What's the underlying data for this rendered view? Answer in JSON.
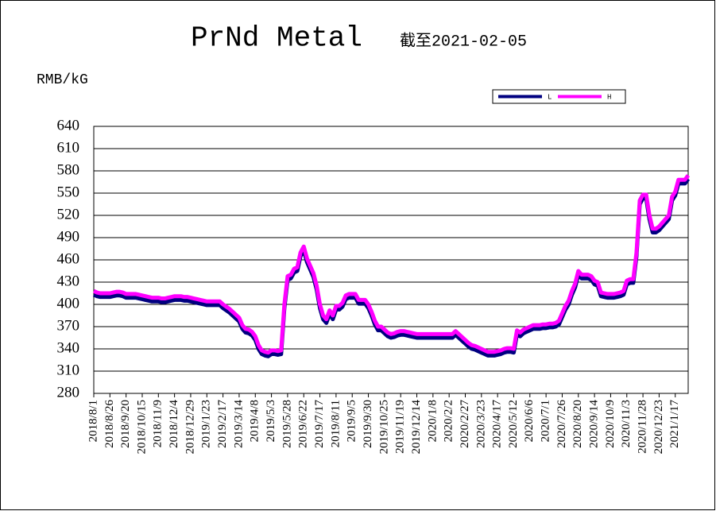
{
  "chart_data": {
    "type": "line",
    "title": "PrNd Metal",
    "subtitle": "截至2021-02-05",
    "y_label": "RMB/kG",
    "categories": [
      "2018/8/1",
      null,
      null,
      null,
      null,
      "2018/8/26",
      null,
      null,
      null,
      null,
      "2018/9/20",
      null,
      null,
      null,
      null,
      "2018/10/15",
      null,
      null,
      null,
      null,
      "2018/11/9",
      null,
      null,
      null,
      null,
      "2018/12/4",
      null,
      null,
      null,
      null,
      "2018/12/29",
      null,
      null,
      null,
      null,
      "2019/1/23",
      null,
      null,
      null,
      null,
      "2019/2/17",
      null,
      null,
      null,
      null,
      "2019/3/14",
      null,
      null,
      null,
      null,
      "2019/4/8",
      null,
      null,
      null,
      null,
      "2019/5/3",
      null,
      null,
      null,
      null,
      "2019/5/28",
      null,
      null,
      null,
      null,
      "2019/6/22",
      null,
      null,
      null,
      null,
      "2019/7/17",
      null,
      null,
      null,
      null,
      "2019/8/11",
      null,
      null,
      null,
      null,
      "2019/9/5",
      null,
      null,
      null,
      null,
      "2019/9/30",
      null,
      null,
      null,
      null,
      "2019/10/25",
      null,
      null,
      null,
      null,
      "2019/11/19",
      null,
      null,
      null,
      null,
      "2019/12/14",
      null,
      null,
      null,
      null,
      "2020/1/8",
      null,
      null,
      null,
      null,
      "2020/2/2",
      null,
      null,
      null,
      null,
      "2020/2/27",
      null,
      null,
      null,
      null,
      "2020/3/23",
      null,
      null,
      null,
      null,
      "2020/4/17",
      null,
      null,
      null,
      null,
      "2020/5/12",
      null,
      null,
      null,
      null,
      "2020/6/6",
      null,
      null,
      null,
      null,
      "2020/7/1",
      null,
      null,
      null,
      null,
      "2020/7/26",
      null,
      null,
      null,
      null,
      "2020/8/20",
      null,
      null,
      null,
      null,
      "2020/9/14",
      null,
      null,
      null,
      null,
      "2020/10/9",
      null,
      null,
      null,
      null,
      "2020/11/3",
      null,
      null,
      null,
      null,
      "2020/11/28",
      null,
      null,
      null,
      null,
      "2020/12/23",
      null,
      null,
      null,
      null,
      "2021/1/17",
      null,
      null,
      null,
      null
    ],
    "series": [
      {
        "name": "L",
        "color": "#000080",
        "values": [
          413,
          411,
          410,
          410,
          410,
          410,
          411,
          412,
          412,
          411,
          409,
          409,
          409,
          409,
          408,
          407,
          406,
          405,
          404,
          404,
          404,
          403,
          403,
          404,
          405,
          406,
          406,
          406,
          405,
          405,
          404,
          403,
          402,
          401,
          400,
          399,
          399,
          399,
          399,
          399,
          395,
          392,
          389,
          385,
          381,
          377,
          367,
          362,
          361,
          358,
          352,
          340,
          333,
          331,
          330,
          333,
          333,
          332,
          333,
          395,
          433,
          435,
          443,
          445,
          465,
          473,
          457,
          447,
          437,
          420,
          395,
          380,
          375,
          387,
          380,
          393,
          393,
          397,
          407,
          409,
          409,
          409,
          401,
          401,
          401,
          395,
          385,
          373,
          365,
          365,
          361,
          357,
          355,
          356,
          358,
          359,
          359,
          358,
          357,
          356,
          355,
          355,
          355,
          355,
          355,
          355,
          355,
          355,
          355,
          355,
          355,
          355,
          359,
          355,
          351,
          347,
          343,
          340,
          339,
          337,
          335,
          333,
          331,
          331,
          331,
          332,
          333,
          335,
          336,
          336,
          335,
          360,
          357,
          361,
          363,
          365,
          367,
          367,
          367,
          368,
          368,
          369,
          369,
          370,
          373,
          383,
          393,
          400,
          413,
          423,
          440,
          435,
          435,
          435,
          433,
          427,
          425,
          411,
          410,
          409,
          409,
          409,
          410,
          411,
          413,
          427,
          429,
          429,
          465,
          535,
          543,
          543,
          515,
          497,
          497,
          500,
          505,
          510,
          515,
          540,
          547,
          563,
          563,
          563,
          569
        ]
      },
      {
        "name": "H",
        "color": "#ff00ff",
        "values": [
          418,
          416,
          415,
          415,
          415,
          415,
          416,
          417,
          417,
          416,
          414,
          414,
          414,
          414,
          413,
          412,
          411,
          410,
          409,
          409,
          409,
          408,
          408,
          409,
          410,
          411,
          411,
          411,
          410,
          410,
          409,
          408,
          407,
          406,
          405,
          404,
          404,
          404,
          404,
          404,
          400,
          397,
          394,
          390,
          386,
          382,
          372,
          367,
          366,
          363,
          357,
          345,
          338,
          336,
          335,
          338,
          338,
          337,
          338,
          400,
          438,
          440,
          448,
          450,
          470,
          478,
          462,
          452,
          442,
          425,
          400,
          385,
          380,
          392,
          385,
          398,
          398,
          402,
          412,
          414,
          414,
          414,
          406,
          406,
          406,
          400,
          390,
          378,
          370,
          370,
          366,
          362,
          360,
          361,
          363,
          364,
          364,
          363,
          362,
          361,
          360,
          360,
          360,
          360,
          360,
          360,
          360,
          360,
          360,
          360,
          360,
          360,
          364,
          360,
          356,
          352,
          348,
          345,
          344,
          342,
          340,
          338,
          336,
          336,
          336,
          337,
          338,
          340,
          341,
          341,
          340,
          365,
          362,
          366,
          368,
          370,
          372,
          372,
          372,
          373,
          373,
          374,
          374,
          375,
          378,
          388,
          398,
          405,
          418,
          428,
          445,
          440,
          440,
          440,
          438,
          432,
          430,
          416,
          415,
          414,
          414,
          414,
          415,
          416,
          418,
          432,
          434,
          434,
          470,
          540,
          548,
          548,
          520,
          502,
          502,
          505,
          510,
          515,
          520,
          545,
          552,
          568,
          568,
          568,
          574
        ]
      }
    ],
    "ylim": [
      280,
      640
    ],
    "yticks": [
      280,
      310,
      340,
      370,
      400,
      430,
      460,
      490,
      520,
      550,
      580,
      610,
      640
    ],
    "grid": true,
    "legend": "top-right"
  }
}
